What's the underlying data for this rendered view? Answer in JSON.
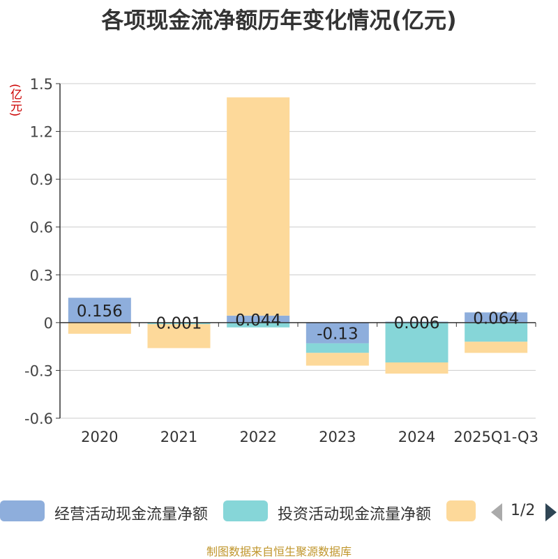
{
  "chart_data": {
    "type": "bar",
    "stacked": true,
    "title": "各项现金流净额历年变化情况(亿元)",
    "ylabel": "(亿元)",
    "ylim": [
      -0.6,
      1.5
    ],
    "yticks": [
      "1.5",
      "1.2",
      "0.9",
      "0.6",
      "0.3",
      "0",
      "-0.3",
      "-0.6"
    ],
    "ytick_values": [
      1.5,
      1.2,
      0.9,
      0.6,
      0.3,
      0,
      -0.3,
      -0.6
    ],
    "categories": [
      "2020",
      "2021",
      "2022",
      "2023",
      "2024",
      "2025Q1-Q3"
    ],
    "series": [
      {
        "name": "经营活动现金流量净额",
        "color": "#8eaedc",
        "values": [
          0.156,
          0.001,
          0.044,
          -0.13,
          0.006,
          0.064
        ],
        "labels": [
          "0.156",
          "0.001",
          "0.044",
          "-0.13",
          "0.006",
          "0.064"
        ]
      },
      {
        "name": "投资活动现金流量净额",
        "color": "#86d6d8",
        "values": [
          0.0,
          -0.01,
          -0.03,
          -0.06,
          -0.25,
          -0.12
        ]
      },
      {
        "name": "",
        "color": "#fdd99a",
        "values": [
          -0.07,
          -0.15,
          1.37,
          -0.08,
          -0.07,
          -0.07
        ]
      }
    ],
    "legend_position": "bottom",
    "grid": true
  },
  "legend": {
    "page": "1/2"
  },
  "footer": "制图数据来自恒生聚源数据库"
}
